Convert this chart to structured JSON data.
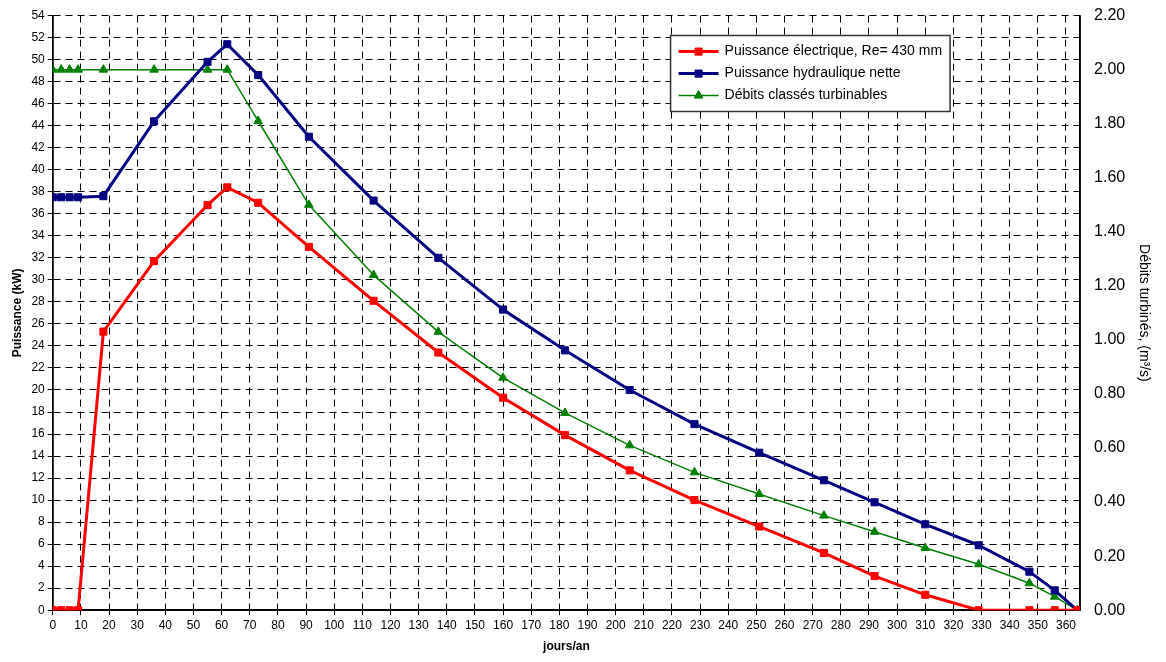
{
  "chart_data": {
    "type": "line",
    "xlabel": "jours/an",
    "ylabel": "Puissance (kW)",
    "y2label": "Débits turbinés, (m³/s)",
    "x": [
      0,
      3,
      6,
      9,
      18,
      36,
      55,
      62,
      73,
      91,
      114,
      137,
      160,
      182,
      205,
      228,
      251,
      274,
      292,
      310,
      329,
      347,
      356,
      364
    ],
    "xlim": [
      0,
      365
    ],
    "xticks": [
      0,
      10,
      20,
      30,
      40,
      50,
      60,
      70,
      80,
      90,
      100,
      110,
      120,
      130,
      140,
      150,
      160,
      170,
      180,
      190,
      200,
      210,
      220,
      230,
      240,
      250,
      260,
      270,
      280,
      290,
      300,
      310,
      320,
      330,
      340,
      350,
      360
    ],
    "ylim": [
      0,
      54
    ],
    "yticks": [
      0,
      2,
      4,
      6,
      8,
      10,
      12,
      14,
      16,
      18,
      20,
      22,
      24,
      26,
      28,
      30,
      32,
      34,
      36,
      38,
      40,
      42,
      44,
      46,
      48,
      50,
      52,
      54
    ],
    "y2lim": [
      0,
      2.2
    ],
    "y2ticks": [
      {
        "value": 0,
        "label": "0.00"
      },
      {
        "value": 0.2,
        "label": "0.20"
      },
      {
        "value": 0.4,
        "label": "0.40"
      },
      {
        "value": 0.6,
        "label": "0.60"
      },
      {
        "value": 0.8,
        "label": "0.80"
      },
      {
        "value": 1,
        "label": "1.00"
      },
      {
        "value": 1.2,
        "label": "1.20"
      },
      {
        "value": 1.4,
        "label": "1.40"
      },
      {
        "value": 1.6,
        "label": "1.60"
      },
      {
        "value": 1.8,
        "label": "1.80"
      },
      {
        "value": 2,
        "label": "2.00"
      },
      {
        "value": 2.2,
        "label": "2.20"
      }
    ],
    "grid": true,
    "legend": "top right",
    "line_style": "solid",
    "series": [
      {
        "name": "Puissance électrique, Re= 430 mm",
        "color": "#ff0000",
        "marker": "square",
        "values": [
          0,
          0,
          0,
          0,
          25.3,
          31.7,
          36.8,
          38.4,
          37.0,
          33.0,
          28.1,
          23.4,
          19.3,
          15.9,
          12.7,
          10.0,
          7.6,
          5.2,
          3.1,
          1.4,
          0,
          0,
          0,
          0
        ]
      },
      {
        "name": "Puissance hydraulique nette",
        "color": "#000080",
        "marker": "square",
        "values": [
          37.5,
          37.5,
          37.5,
          37.5,
          37.6,
          44.4,
          49.8,
          51.4,
          48.6,
          43.0,
          37.2,
          32.0,
          27.3,
          23.6,
          20.0,
          16.9,
          14.3,
          11.8,
          9.8,
          7.8,
          5.9,
          3.5,
          1.8,
          0
        ]
      },
      {
        "name": "Débits classés turbinables",
        "color": "#008000",
        "marker": "triangle",
        "axis": "y2",
        "values": [
          2.0,
          2.0,
          2.0,
          2.0,
          2.0,
          2.0,
          2.0,
          2.0,
          1.81,
          1.5,
          1.24,
          1.03,
          0.86,
          0.73,
          0.61,
          0.51,
          0.43,
          0.35,
          0.29,
          0.23,
          0.17,
          0.1,
          0.05,
          0
        ]
      }
    ]
  }
}
